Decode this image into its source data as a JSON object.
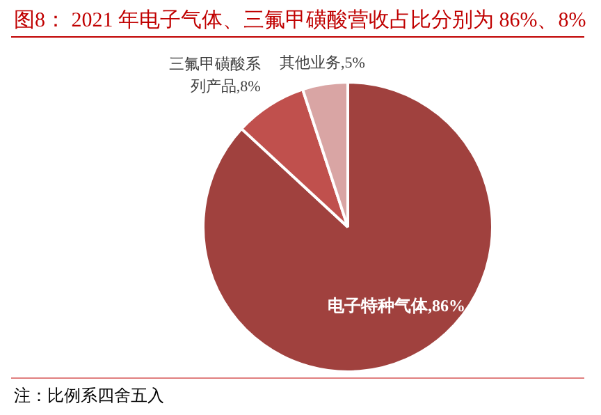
{
  "chart_data": {
    "type": "pie",
    "title": "图8： 2021 年电子气体、三氟甲磺酸营收占比分别为 86%、8%",
    "categories": [
      "电子特种气体",
      "三氟甲磺酸系列产品",
      "其他业务"
    ],
    "values": [
      86,
      8,
      5
    ],
    "value_labels": [
      "86%",
      "8%",
      "5%"
    ],
    "colors": [
      "#a0413e",
      "#c0504d",
      "#d9a5a4"
    ],
    "legend": false,
    "annotations": [
      "注：比例系四舍五入"
    ]
  }
}
